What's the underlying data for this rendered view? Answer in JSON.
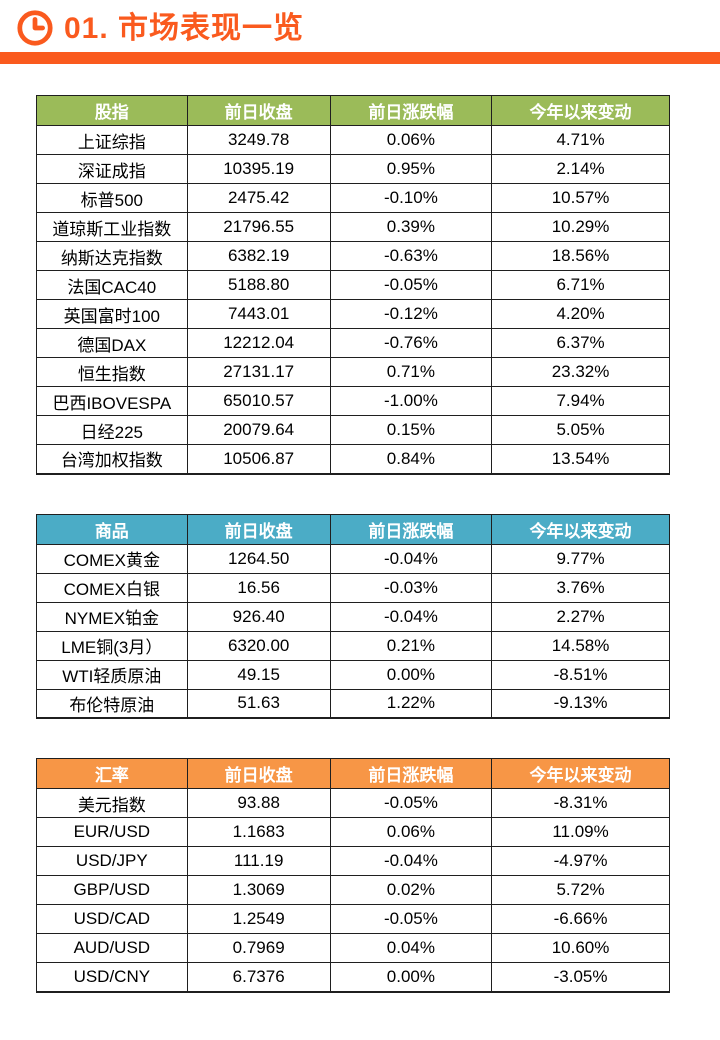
{
  "page": {
    "title": "01. 市场表现一览",
    "accent_color": "#FA5A1E",
    "icon": "clock-icon"
  },
  "tables": [
    {
      "name": "stock-indices",
      "header_color": "#9BBB59",
      "columns": [
        "股指",
        "前日收盘",
        "前日涨跌幅",
        "今年以来变动"
      ],
      "rows": [
        [
          "上证综指",
          "3249.78",
          "0.06%",
          "4.71%"
        ],
        [
          "深证成指",
          "10395.19",
          "0.95%",
          "2.14%"
        ],
        [
          "标普500",
          "2475.42",
          "-0.10%",
          "10.57%"
        ],
        [
          "道琼斯工业指数",
          "21796.55",
          "0.39%",
          "10.29%"
        ],
        [
          "纳斯达克指数",
          "6382.19",
          "-0.63%",
          "18.56%"
        ],
        [
          "法国CAC40",
          "5188.80",
          "-0.05%",
          "6.71%"
        ],
        [
          "英国富时100",
          "7443.01",
          "-0.12%",
          "4.20%"
        ],
        [
          "德国DAX",
          "12212.04",
          "-0.76%",
          "6.37%"
        ],
        [
          "恒生指数",
          "27131.17",
          "0.71%",
          "23.32%"
        ],
        [
          "巴西IBOVESPA",
          "65010.57",
          "-1.00%",
          "7.94%"
        ],
        [
          "日经225",
          "20079.64",
          "0.15%",
          "5.05%"
        ],
        [
          "台湾加权指数",
          "10506.87",
          "0.84%",
          "13.54%"
        ]
      ]
    },
    {
      "name": "commodities",
      "header_color": "#4BACC6",
      "columns": [
        "商品",
        "前日收盘",
        "前日涨跌幅",
        "今年以来变动"
      ],
      "rows": [
        [
          "COMEX黄金",
          "1264.50",
          "-0.04%",
          "9.77%"
        ],
        [
          "COMEX白银",
          "16.56",
          "-0.03%",
          "3.76%"
        ],
        [
          "NYMEX铂金",
          "926.40",
          "-0.04%",
          "2.27%"
        ],
        [
          "LME铜(3月）",
          "6320.00",
          "0.21%",
          "14.58%"
        ],
        [
          "WTI轻质原油",
          "49.15",
          "0.00%",
          "-8.51%"
        ],
        [
          "布伦特原油",
          "51.63",
          "1.22%",
          "-9.13%"
        ]
      ]
    },
    {
      "name": "fx-rates",
      "header_color": "#F79646",
      "columns": [
        "汇率",
        "前日收盘",
        "前日涨跌幅",
        "今年以来变动"
      ],
      "rows": [
        [
          "美元指数",
          "93.88",
          "-0.05%",
          "-8.31%"
        ],
        [
          "EUR/USD",
          "1.1683",
          "0.06%",
          "11.09%"
        ],
        [
          "USD/JPY",
          "111.19",
          "-0.04%",
          "-4.97%"
        ],
        [
          "GBP/USD",
          "1.3069",
          "0.02%",
          "5.72%"
        ],
        [
          "USD/CAD",
          "1.2549",
          "-0.05%",
          "-6.66%"
        ],
        [
          "AUD/USD",
          "0.7969",
          "0.04%",
          "10.60%"
        ],
        [
          "USD/CNY",
          "6.7376",
          "0.00%",
          "-3.05%"
        ]
      ]
    }
  ]
}
